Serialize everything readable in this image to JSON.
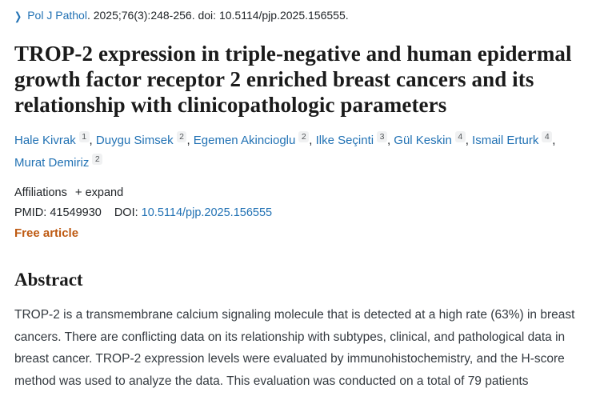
{
  "journal_line": {
    "journal": "Pol J Pathol",
    "citation": ". 2025;76(3):248-256. doi: 10.5114/pjp.2025.156555."
  },
  "title": "TROP-2 expression in triple-negative and human epidermal growth factor receptor 2 enriched breast cancers and its relationship with clinicopathologic parameters",
  "authors": [
    {
      "name": "Hale Kivrak",
      "sup": "1"
    },
    {
      "name": "Duygu Simsek",
      "sup": "2"
    },
    {
      "name": "Egemen Akincioglu",
      "sup": "2"
    },
    {
      "name": "Ilke Seçinti",
      "sup": "3"
    },
    {
      "name": "Gül Keskin",
      "sup": "4"
    },
    {
      "name": "Ismail Erturk",
      "sup": "4"
    },
    {
      "name": "Murat Demiriz",
      "sup": "2"
    }
  ],
  "affiliations": {
    "label": "Affiliations",
    "expand_icon": "+",
    "expand_label": "expand"
  },
  "identifiers": {
    "pmid_label": "PMID:",
    "pmid_value": "41549930",
    "doi_label": "DOI:",
    "doi_value": "10.5114/pjp.2025.156555"
  },
  "free_article_label": "Free article",
  "abstract": {
    "heading": "Abstract",
    "text": "TROP-2 is a transmembrane calcium signaling molecule that is detected at a high rate (63%) in breast cancers. There are conflicting data on its relationship with subtypes, clinical, and pathological data in breast cancer. TROP-2 expression levels were evaluated by immunohistochemistry, and the H-score method was used to analyze the data. This evaluation was conducted on a total of 79 patients"
  },
  "colors": {
    "link_blue": "#2272b4",
    "free_article_orange": "#be5a12",
    "text_dark": "#212529"
  }
}
